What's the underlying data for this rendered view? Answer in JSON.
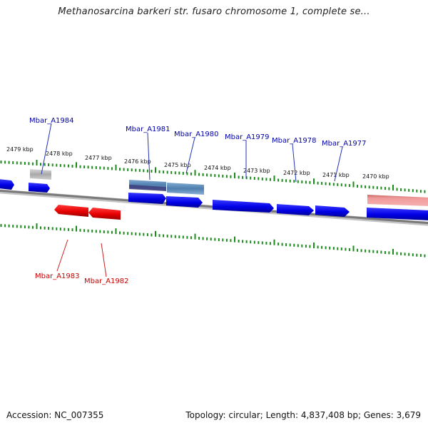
{
  "title": "Methanosarcina barkeri str. fusaro chromosome 1, complete se...",
  "footer": {
    "accession": "Accession: NC_007355",
    "topology": "Topology: circular; Length: 4,837,408 bp; Genes: 3,679"
  },
  "kbp_labels": [
    "2479 kbp",
    "2478 kbp",
    "2477 kbp",
    "2476 kbp",
    "2475 kbp",
    "2474 kbp",
    "2473 kbp",
    "2472 kbp",
    "2471 kbp",
    "2470 kbp"
  ],
  "forward_genes": [
    "Mbar_A1984",
    "Mbar_A1981",
    "Mbar_A1980",
    "Mbar_A1979",
    "Mbar_A1978",
    "Mbar_A1977"
  ],
  "reverse_genes": [
    "Mbar_A1983",
    "Mbar_A1982"
  ],
  "colors": {
    "forward": "#0000ee",
    "reverse": "#ee0000",
    "tick": "#1a8a1a",
    "backbone": "#777777",
    "forward_label": "#0000aa",
    "reverse_label": "#cc0000"
  }
}
